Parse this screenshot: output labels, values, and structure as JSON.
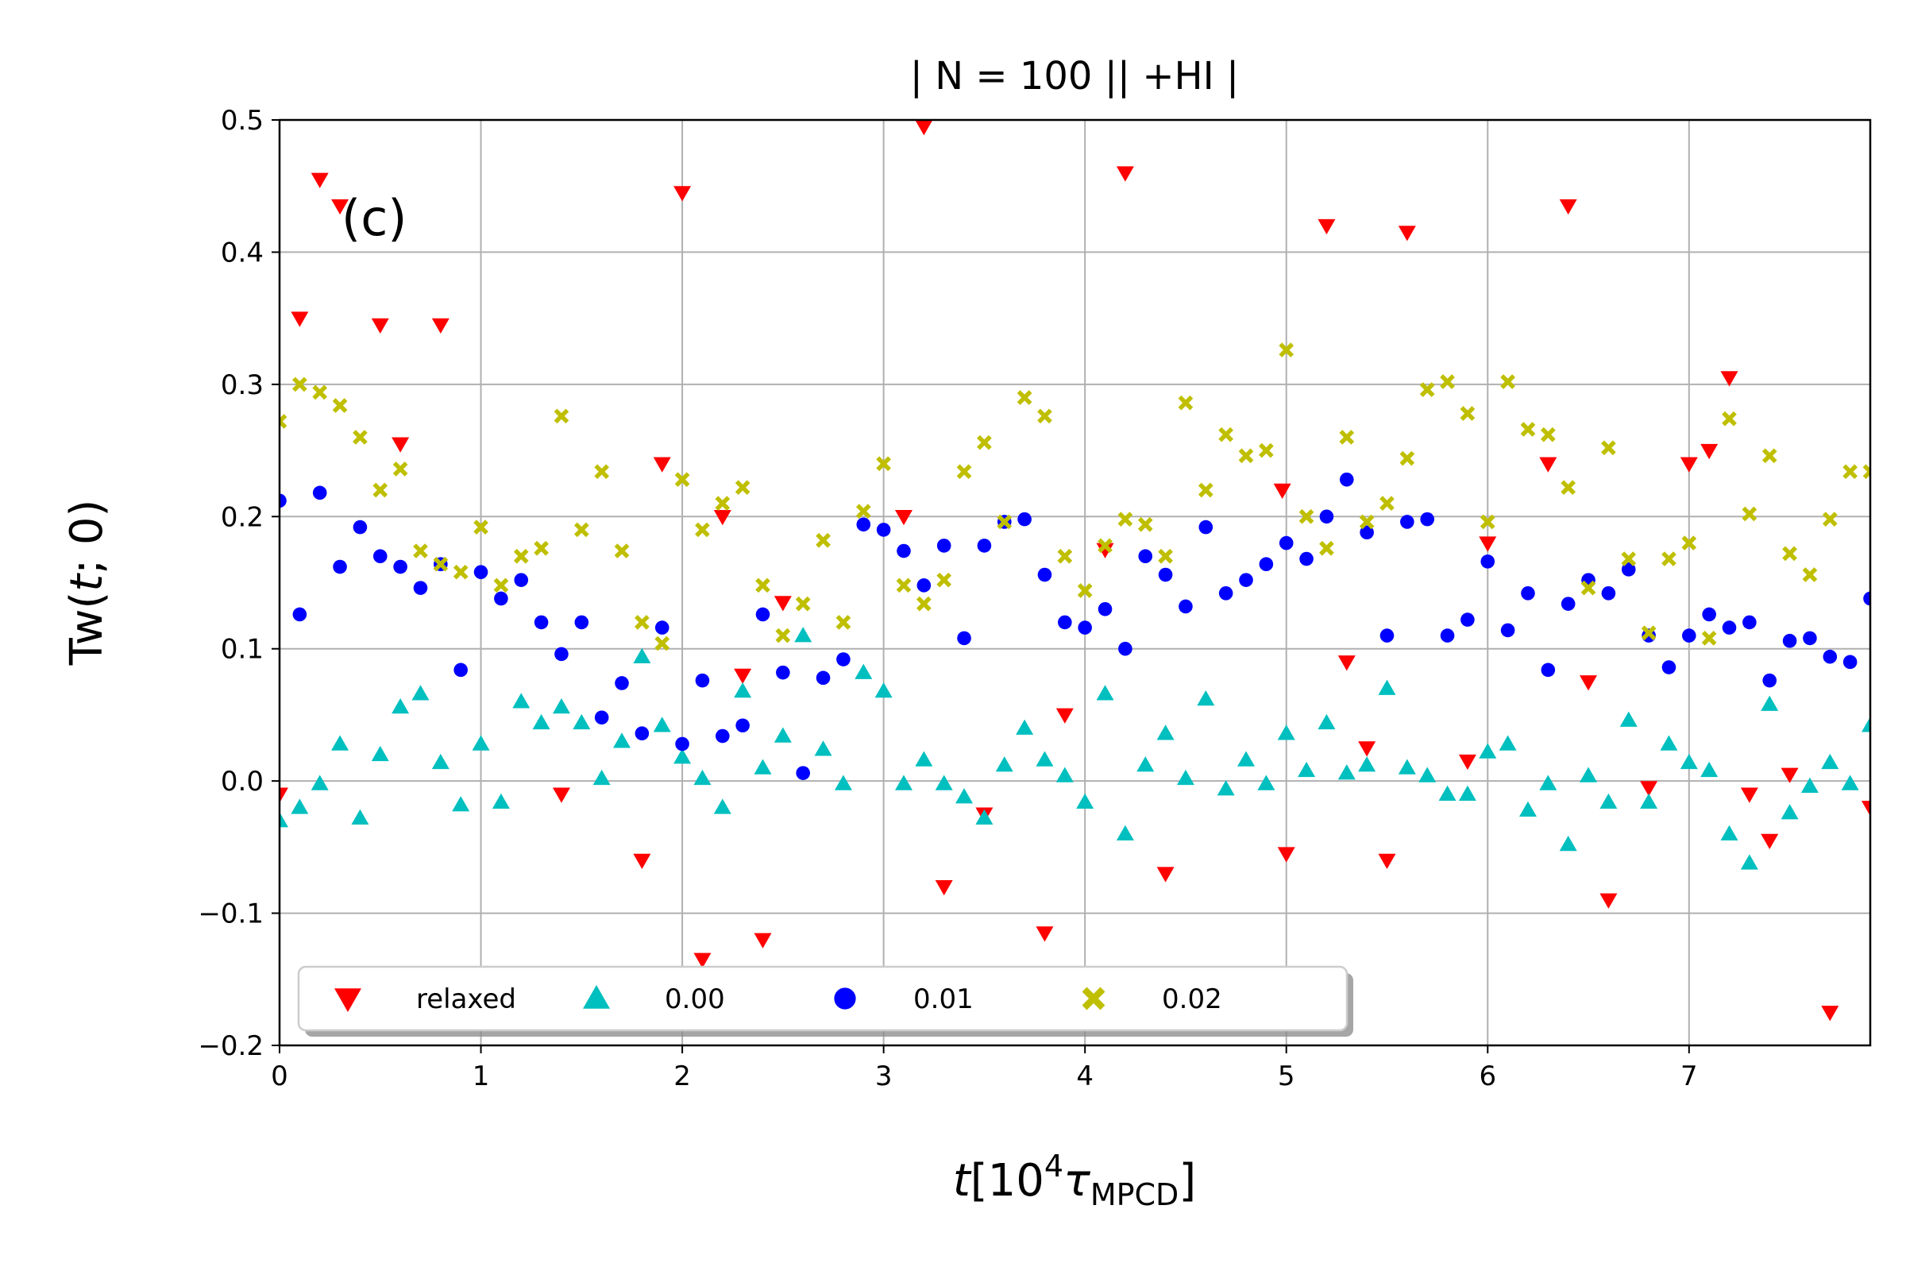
{
  "chart_data": {
    "type": "scatter",
    "title": "| N = 100 || +HI |",
    "panel_label": "(c)",
    "xlabel": {
      "var": "t",
      "open": "[10",
      "sup": "4",
      "tau": "τ",
      "sub": "MPCD",
      "close": "]"
    },
    "ylabel": {
      "pre": "Tw(",
      "var": "t",
      "post": "; 0)"
    },
    "xlim": [
      0,
      7.9
    ],
    "ylim": [
      -0.2,
      0.5
    ],
    "grid": true,
    "legend_location": "lower-left",
    "x_ticks": [
      0,
      1,
      2,
      3,
      4,
      5,
      6,
      7
    ],
    "x_tick_labels": [
      "0",
      "1",
      "2",
      "3",
      "4",
      "5",
      "6",
      "7"
    ],
    "y_ticks": [
      -0.2,
      -0.1,
      0.0,
      0.1,
      0.2,
      0.3,
      0.4,
      0.5
    ],
    "y_tick_labels": [
      "−0.2",
      "−0.1",
      "0.0",
      "0.1",
      "0.2",
      "0.3",
      "0.4",
      "0.5"
    ],
    "series": [
      {
        "name": "relaxed",
        "marker": "triangle-down",
        "color": "#ff0000",
        "points": [
          [
            0.0,
            -0.01
          ],
          [
            0.1,
            0.35
          ],
          [
            0.2,
            0.455
          ],
          [
            0.3,
            0.435
          ],
          [
            0.5,
            0.345
          ],
          [
            0.6,
            0.255
          ],
          [
            0.8,
            0.345
          ],
          [
            1.4,
            -0.01
          ],
          [
            1.8,
            -0.06
          ],
          [
            1.9,
            0.24
          ],
          [
            2.0,
            0.445
          ],
          [
            2.1,
            -0.135
          ],
          [
            2.2,
            0.2
          ],
          [
            2.3,
            0.08
          ],
          [
            2.4,
            -0.12
          ],
          [
            2.5,
            0.135
          ],
          [
            3.1,
            0.2
          ],
          [
            3.2,
            0.495
          ],
          [
            3.3,
            -0.08
          ],
          [
            3.5,
            -0.025
          ],
          [
            3.8,
            -0.115
          ],
          [
            3.9,
            0.05
          ],
          [
            4.1,
            0.175
          ],
          [
            4.2,
            0.46
          ],
          [
            4.4,
            -0.07
          ],
          [
            4.98,
            0.22
          ],
          [
            5.0,
            -0.055
          ],
          [
            5.2,
            0.42
          ],
          [
            5.3,
            0.09
          ],
          [
            5.4,
            0.025
          ],
          [
            5.5,
            -0.06
          ],
          [
            5.6,
            0.415
          ],
          [
            5.9,
            0.015
          ],
          [
            6.0,
            0.18
          ],
          [
            6.3,
            0.24
          ],
          [
            6.4,
            0.435
          ],
          [
            6.5,
            0.075
          ],
          [
            6.6,
            -0.09
          ],
          [
            6.8,
            -0.005
          ],
          [
            7.0,
            0.24
          ],
          [
            7.1,
            0.25
          ],
          [
            7.2,
            0.305
          ],
          [
            7.3,
            -0.01
          ],
          [
            7.4,
            -0.045
          ],
          [
            7.5,
            0.005
          ],
          [
            7.7,
            -0.175
          ],
          [
            7.9,
            -0.02
          ]
        ]
      },
      {
        "name": "0.00",
        "marker": "triangle-up",
        "color": "#00bfbf",
        "points": [
          [
            0.0,
            -0.03
          ],
          [
            0.1,
            -0.02
          ],
          [
            0.2,
            -0.002
          ],
          [
            0.3,
            0.028
          ],
          [
            0.4,
            -0.028
          ],
          [
            0.5,
            0.02
          ],
          [
            0.6,
            0.056
          ],
          [
            0.7,
            0.066
          ],
          [
            0.8,
            0.014
          ],
          [
            0.9,
            -0.018
          ],
          [
            1.0,
            0.028
          ],
          [
            1.1,
            -0.016
          ],
          [
            1.2,
            0.06
          ],
          [
            1.3,
            0.044
          ],
          [
            1.4,
            0.056
          ],
          [
            1.5,
            0.044
          ],
          [
            1.6,
            0.002
          ],
          [
            1.7,
            0.03
          ],
          [
            1.8,
            0.094
          ],
          [
            1.9,
            0.042
          ],
          [
            2.0,
            0.018
          ],
          [
            2.1,
            0.002
          ],
          [
            2.2,
            -0.02
          ],
          [
            2.3,
            0.068
          ],
          [
            2.4,
            0.01
          ],
          [
            2.5,
            0.034
          ],
          [
            2.6,
            0.11
          ],
          [
            2.7,
            0.024
          ],
          [
            2.8,
            -0.002
          ],
          [
            2.9,
            0.082
          ],
          [
            3.0,
            0.068
          ],
          [
            3.1,
            -0.002
          ],
          [
            3.2,
            0.016
          ],
          [
            3.3,
            -0.002
          ],
          [
            3.4,
            -0.012
          ],
          [
            3.5,
            -0.028
          ],
          [
            3.6,
            0.012
          ],
          [
            3.7,
            0.04
          ],
          [
            3.8,
            0.016
          ],
          [
            3.9,
            0.004
          ],
          [
            4.0,
            -0.016
          ],
          [
            4.1,
            0.066
          ],
          [
            4.2,
            -0.04
          ],
          [
            4.3,
            0.012
          ],
          [
            4.4,
            0.036
          ],
          [
            4.5,
            0.002
          ],
          [
            4.6,
            0.062
          ],
          [
            4.7,
            -0.006
          ],
          [
            4.8,
            0.016
          ],
          [
            4.9,
            -0.002
          ],
          [
            5.0,
            0.036
          ],
          [
            5.1,
            0.008
          ],
          [
            5.2,
            0.044
          ],
          [
            5.3,
            0.006
          ],
          [
            5.4,
            0.012
          ],
          [
            5.5,
            0.07
          ],
          [
            5.6,
            0.01
          ],
          [
            5.7,
            0.004
          ],
          [
            5.8,
            -0.01
          ],
          [
            5.9,
            -0.01
          ],
          [
            6.0,
            0.022
          ],
          [
            6.1,
            0.028
          ],
          [
            6.2,
            -0.022
          ],
          [
            6.3,
            -0.002
          ],
          [
            6.4,
            -0.048
          ],
          [
            6.5,
            0.004
          ],
          [
            6.6,
            -0.016
          ],
          [
            6.7,
            0.046
          ],
          [
            6.8,
            -0.016
          ],
          [
            6.9,
            0.028
          ],
          [
            7.0,
            0.014
          ],
          [
            7.1,
            0.008
          ],
          [
            7.2,
            -0.04
          ],
          [
            7.3,
            -0.062
          ],
          [
            7.4,
            0.058
          ],
          [
            7.5,
            -0.024
          ],
          [
            7.6,
            -0.004
          ],
          [
            7.7,
            0.014
          ],
          [
            7.8,
            -0.002
          ],
          [
            7.9,
            0.042
          ]
        ]
      },
      {
        "name": "0.01",
        "marker": "circle",
        "color": "#0000ff",
        "points": [
          [
            0.0,
            0.212
          ],
          [
            0.1,
            0.126
          ],
          [
            0.2,
            0.218
          ],
          [
            0.3,
            0.162
          ],
          [
            0.4,
            0.192
          ],
          [
            0.5,
            0.17
          ],
          [
            0.6,
            0.162
          ],
          [
            0.7,
            0.146
          ],
          [
            0.8,
            0.164
          ],
          [
            0.9,
            0.084
          ],
          [
            1.0,
            0.158
          ],
          [
            1.1,
            0.138
          ],
          [
            1.2,
            0.152
          ],
          [
            1.3,
            0.12
          ],
          [
            1.4,
            0.096
          ],
          [
            1.5,
            0.12
          ],
          [
            1.6,
            0.048
          ],
          [
            1.7,
            0.074
          ],
          [
            1.8,
            0.036
          ],
          [
            1.9,
            0.116
          ],
          [
            2.0,
            0.028
          ],
          [
            2.1,
            0.076
          ],
          [
            2.2,
            0.034
          ],
          [
            2.3,
            0.042
          ],
          [
            2.4,
            0.126
          ],
          [
            2.5,
            0.082
          ],
          [
            2.6,
            0.006
          ],
          [
            2.7,
            0.078
          ],
          [
            2.8,
            0.092
          ],
          [
            2.9,
            0.194
          ],
          [
            3.0,
            0.19
          ],
          [
            3.1,
            0.174
          ],
          [
            3.2,
            0.148
          ],
          [
            3.3,
            0.178
          ],
          [
            3.4,
            0.108
          ],
          [
            3.5,
            0.178
          ],
          [
            3.6,
            0.196
          ],
          [
            3.7,
            0.198
          ],
          [
            3.8,
            0.156
          ],
          [
            3.9,
            0.12
          ],
          [
            4.0,
            0.116
          ],
          [
            4.1,
            0.13
          ],
          [
            4.2,
            0.1
          ],
          [
            4.3,
            0.17
          ],
          [
            4.4,
            0.156
          ],
          [
            4.5,
            0.132
          ],
          [
            4.6,
            0.192
          ],
          [
            4.7,
            0.142
          ],
          [
            4.8,
            0.152
          ],
          [
            4.9,
            0.164
          ],
          [
            5.0,
            0.18
          ],
          [
            5.1,
            0.168
          ],
          [
            5.2,
            0.2
          ],
          [
            5.3,
            0.228
          ],
          [
            5.4,
            0.188
          ],
          [
            5.5,
            0.11
          ],
          [
            5.6,
            0.196
          ],
          [
            5.7,
            0.198
          ],
          [
            5.8,
            0.11
          ],
          [
            5.9,
            0.122
          ],
          [
            6.0,
            0.166
          ],
          [
            6.1,
            0.114
          ],
          [
            6.2,
            0.142
          ],
          [
            6.3,
            0.084
          ],
          [
            6.4,
            0.134
          ],
          [
            6.5,
            0.152
          ],
          [
            6.6,
            0.142
          ],
          [
            6.7,
            0.16
          ],
          [
            6.8,
            0.11
          ],
          [
            6.9,
            0.086
          ],
          [
            7.0,
            0.11
          ],
          [
            7.1,
            0.126
          ],
          [
            7.2,
            0.116
          ],
          [
            7.3,
            0.12
          ],
          [
            7.4,
            0.076
          ],
          [
            7.5,
            0.106
          ],
          [
            7.6,
            0.108
          ],
          [
            7.7,
            0.094
          ],
          [
            7.8,
            0.09
          ],
          [
            7.9,
            0.138
          ]
        ]
      },
      {
        "name": "0.02",
        "marker": "x-filled",
        "color": "#bfbf00",
        "points": [
          [
            0.0,
            0.272
          ],
          [
            0.1,
            0.3
          ],
          [
            0.2,
            0.294
          ],
          [
            0.3,
            0.284
          ],
          [
            0.4,
            0.26
          ],
          [
            0.5,
            0.22
          ],
          [
            0.6,
            0.236
          ],
          [
            0.7,
            0.174
          ],
          [
            0.8,
            0.164
          ],
          [
            0.9,
            0.158
          ],
          [
            1.0,
            0.192
          ],
          [
            1.1,
            0.148
          ],
          [
            1.2,
            0.17
          ],
          [
            1.3,
            0.176
          ],
          [
            1.4,
            0.276
          ],
          [
            1.5,
            0.19
          ],
          [
            1.6,
            0.234
          ],
          [
            1.7,
            0.174
          ],
          [
            1.8,
            0.12
          ],
          [
            1.9,
            0.104
          ],
          [
            2.0,
            0.228
          ],
          [
            2.1,
            0.19
          ],
          [
            2.2,
            0.21
          ],
          [
            2.3,
            0.222
          ],
          [
            2.4,
            0.148
          ],
          [
            2.5,
            0.11
          ],
          [
            2.6,
            0.134
          ],
          [
            2.7,
            0.182
          ],
          [
            2.8,
            0.12
          ],
          [
            2.9,
            0.204
          ],
          [
            3.0,
            0.24
          ],
          [
            3.1,
            0.148
          ],
          [
            3.2,
            0.134
          ],
          [
            3.3,
            0.152
          ],
          [
            3.4,
            0.234
          ],
          [
            3.5,
            0.256
          ],
          [
            3.6,
            0.196
          ],
          [
            3.7,
            0.29
          ],
          [
            3.8,
            0.276
          ],
          [
            3.9,
            0.17
          ],
          [
            4.0,
            0.144
          ],
          [
            4.1,
            0.178
          ],
          [
            4.2,
            0.198
          ],
          [
            4.3,
            0.194
          ],
          [
            4.4,
            0.17
          ],
          [
            4.5,
            0.286
          ],
          [
            4.6,
            0.22
          ],
          [
            4.7,
            0.262
          ],
          [
            4.8,
            0.246
          ],
          [
            4.9,
            0.25
          ],
          [
            5.0,
            0.326
          ],
          [
            5.1,
            0.2
          ],
          [
            5.2,
            0.176
          ],
          [
            5.3,
            0.26
          ],
          [
            5.4,
            0.196
          ],
          [
            5.5,
            0.21
          ],
          [
            5.6,
            0.244
          ],
          [
            5.7,
            0.296
          ],
          [
            5.8,
            0.302
          ],
          [
            5.9,
            0.278
          ],
          [
            6.0,
            0.196
          ],
          [
            6.1,
            0.302
          ],
          [
            6.2,
            0.266
          ],
          [
            6.3,
            0.262
          ],
          [
            6.4,
            0.222
          ],
          [
            6.5,
            0.146
          ],
          [
            6.6,
            0.252
          ],
          [
            6.7,
            0.168
          ],
          [
            6.8,
            0.112
          ],
          [
            6.9,
            0.168
          ],
          [
            7.0,
            0.18
          ],
          [
            7.1,
            0.108
          ],
          [
            7.2,
            0.274
          ],
          [
            7.3,
            0.202
          ],
          [
            7.4,
            0.246
          ],
          [
            7.5,
            0.172
          ],
          [
            7.6,
            0.156
          ],
          [
            7.7,
            0.198
          ],
          [
            7.8,
            0.234
          ],
          [
            7.9,
            0.234
          ]
        ]
      }
    ]
  }
}
